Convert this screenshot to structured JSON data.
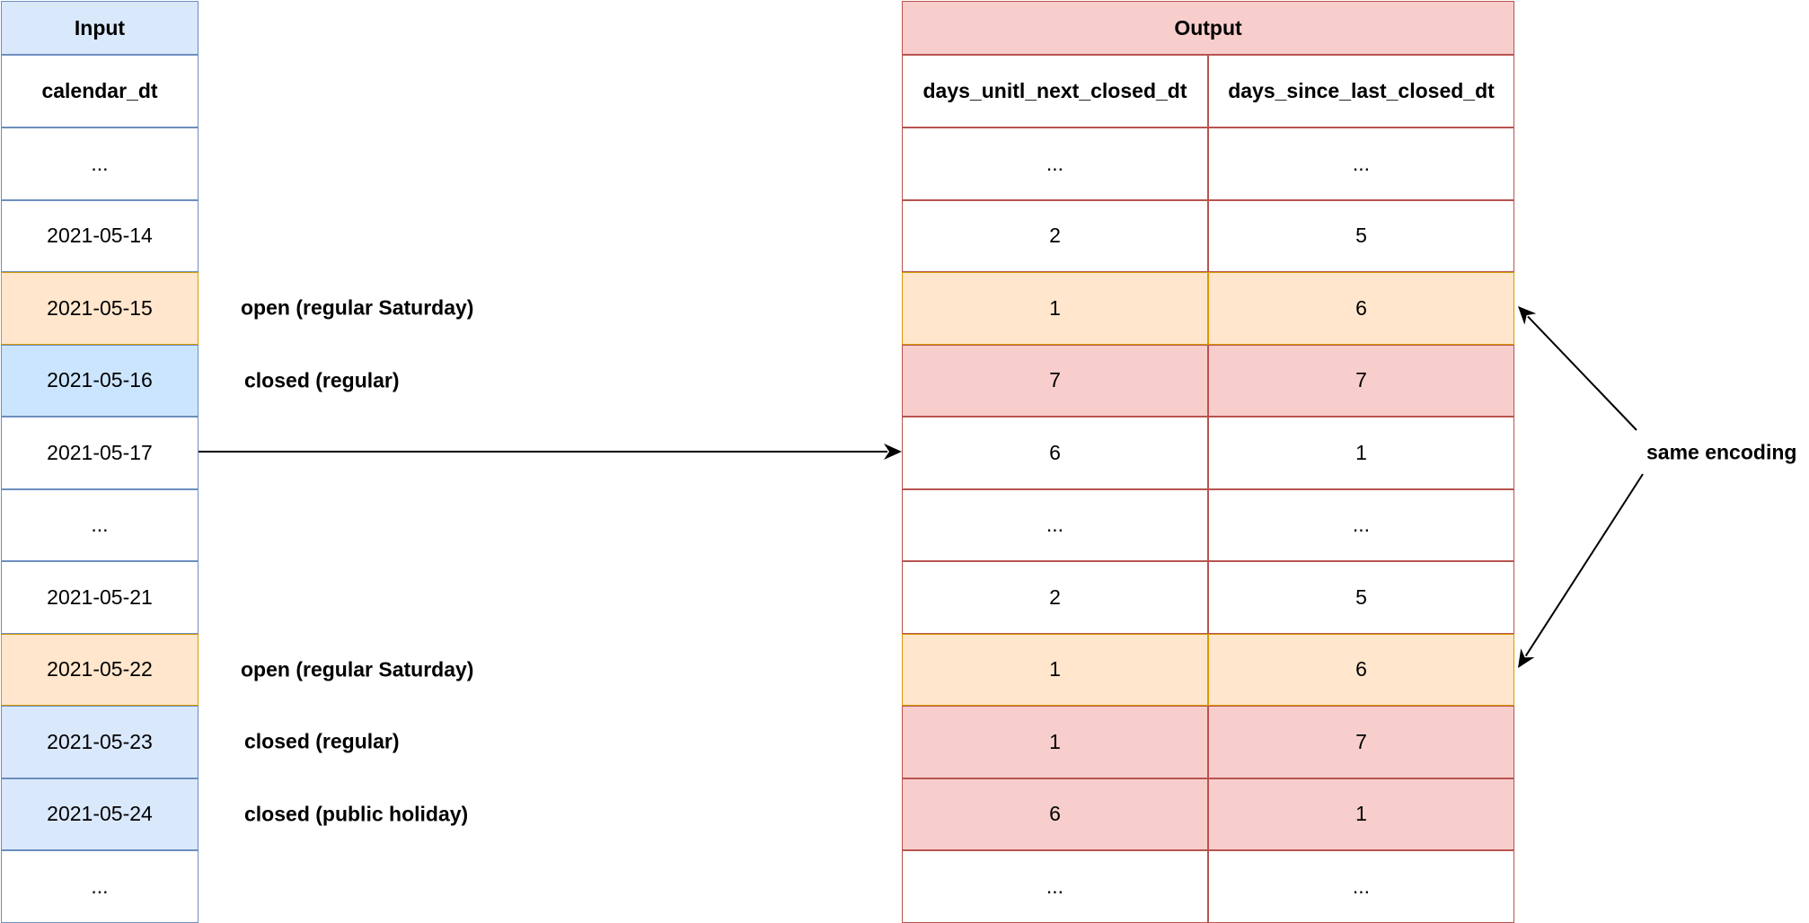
{
  "input": {
    "title": "Input",
    "column": "calendar_dt",
    "rows": [
      "...",
      "2021-05-14",
      "2021-05-15",
      "2021-05-16",
      "2021-05-17",
      "...",
      "2021-05-21",
      "2021-05-22",
      "2021-05-23",
      "2021-05-24",
      "..."
    ]
  },
  "annotations": [
    {
      "row": 2,
      "text": "open (regular Saturday)"
    },
    {
      "row": 3,
      "text": "closed (regular)"
    },
    {
      "row": 7,
      "text": "open (regular Saturday)"
    },
    {
      "row": 8,
      "text": "closed (regular)"
    },
    {
      "row": 9,
      "text": "closed (public holiday)"
    }
  ],
  "output": {
    "title": "Output",
    "columns": [
      "days_unitl_next_closed_dt",
      "days_since_last_closed_dt"
    ],
    "rows": [
      [
        "...",
        "..."
      ],
      [
        "2",
        "5"
      ],
      [
        "1",
        "6"
      ],
      [
        "7",
        "7"
      ],
      [
        "6",
        "1"
      ],
      [
        "...",
        "..."
      ],
      [
        "2",
        "5"
      ],
      [
        "1",
        "6"
      ],
      [
        "1",
        "7"
      ],
      [
        "6",
        "1"
      ],
      [
        "...",
        "..."
      ]
    ]
  },
  "callout": {
    "text": "same encoding"
  },
  "row_styles": {
    "input": [
      "white",
      "white",
      "orange",
      "blue-strong",
      "white",
      "white",
      "white",
      "orange",
      "blue",
      "blue",
      "white"
    ],
    "output": [
      "white",
      "white",
      "orange",
      "red",
      "white",
      "white",
      "white",
      "orange",
      "red",
      "red",
      "white"
    ]
  },
  "colors": {
    "input_border": "#6c8ebf",
    "output_border": "#b85450",
    "orange_border": "#d79b00",
    "white": "#ffffff",
    "blue_header": "#dae8fc",
    "blue": "#dae8fc",
    "blue_strong": "#cce5ff",
    "orange": "#ffe6cc",
    "red": "#f8cecc"
  }
}
